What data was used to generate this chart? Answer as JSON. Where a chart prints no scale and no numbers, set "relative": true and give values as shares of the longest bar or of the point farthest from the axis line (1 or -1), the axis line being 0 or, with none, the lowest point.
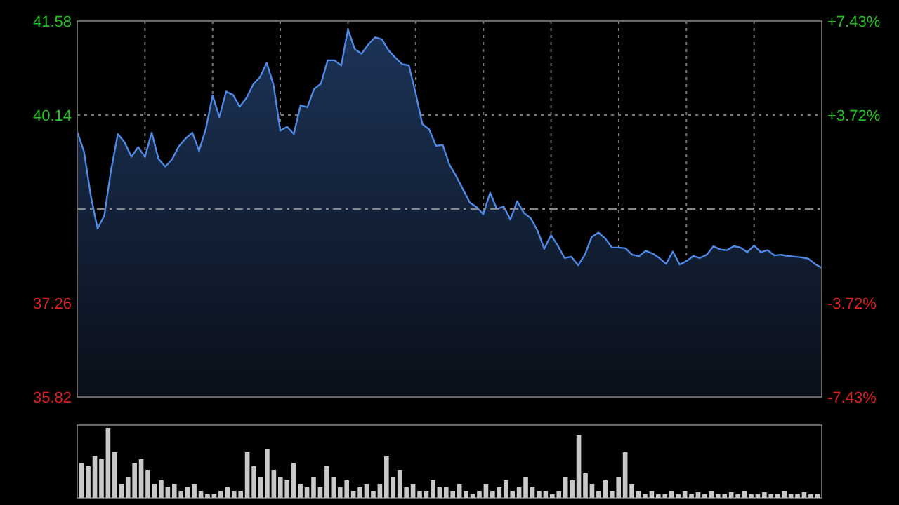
{
  "chart_data": [
    {
      "type": "area",
      "categories": [
        null,
        null,
        null,
        null,
        null,
        null,
        null,
        null,
        null,
        null,
        null,
        null,
        null,
        null,
        null,
        null,
        null,
        null,
        null,
        null,
        null,
        null,
        null,
        null,
        null,
        null,
        null,
        null,
        null,
        null,
        null,
        null,
        null,
        null,
        null,
        null,
        null,
        null,
        null,
        null,
        null,
        null,
        null,
        null,
        null,
        null,
        null,
        null,
        null,
        null,
        null,
        null,
        null,
        null,
        null,
        null,
        null,
        null,
        null,
        null,
        null,
        null,
        null,
        null,
        null,
        null,
        null,
        null,
        null,
        null,
        null,
        null,
        null,
        null,
        null,
        null,
        null,
        null,
        null,
        null,
        null,
        null,
        null,
        null,
        null,
        null,
        null,
        null,
        null,
        null,
        null,
        null,
        null,
        null,
        null,
        null,
        null,
        null,
        null,
        null,
        null,
        null,
        null,
        null,
        null,
        null,
        null,
        null,
        null,
        null,
        null
      ],
      "ylim": [
        35.82,
        41.58
      ],
      "yticks": [
        35.82,
        37.26,
        40.14,
        41.58
      ],
      "y2lim": [
        -7.43,
        7.43
      ],
      "y2ticks": [
        {
          "value": -7.43,
          "label": "-7.43%"
        },
        {
          "value": -3.72,
          "label": "-3.72%"
        },
        {
          "value": 3.72,
          "label": "+3.72%"
        },
        {
          "value": 7.43,
          "label": "+7.43%"
        }
      ],
      "ref_lines": [
        {
          "axis": "y",
          "value": 38.7,
          "line_style": "dashed",
          "color": "#888888"
        }
      ],
      "grid": true,
      "tick_labels": "y",
      "series": [
        {
          "color": "#4f8ae6",
          "values": [
            39.88,
            39.58,
            38.9,
            38.4,
            38.6,
            39.3,
            39.85,
            39.72,
            39.5,
            39.65,
            39.5,
            39.87,
            39.47,
            39.35,
            39.46,
            39.66,
            39.78,
            39.87,
            39.59,
            39.93,
            40.44,
            40.11,
            40.5,
            40.45,
            40.27,
            40.4,
            40.61,
            40.72,
            40.94,
            40.6,
            39.9,
            39.96,
            39.85,
            40.29,
            40.26,
            40.54,
            40.62,
            40.98,
            40.98,
            40.9,
            41.45,
            41.15,
            41.08,
            41.22,
            41.33,
            41.3,
            41.13,
            41.02,
            40.92,
            40.9,
            40.47,
            40,
            39.92,
            39.67,
            39.68,
            39.38,
            39.2,
            39,
            38.8,
            38.73,
            38.62,
            38.95,
            38.7,
            38.74,
            38.54,
            38.82,
            38.64,
            38.56,
            38.37,
            38.09,
            38.3,
            38.14,
            37.95,
            37.97,
            37.84,
            38,
            38.27,
            38.34,
            38.25,
            38.11,
            38.11,
            38.1,
            38,
            37.98,
            38.06,
            38.02,
            37.95,
            37.86,
            38.05,
            37.85,
            37.9,
            37.98,
            37.95,
            38,
            38.13,
            38.08,
            38.07,
            38.13,
            38.11,
            38.04,
            38.14,
            38.04,
            38.07,
            37.99,
            38,
            37.98,
            37.97,
            37.96,
            37.94,
            37.86,
            37.8
          ]
        }
      ]
    },
    {
      "type": "bar",
      "relative": true,
      "color": "#c8c8c8",
      "categories": [
        null,
        null,
        null,
        null,
        null,
        null,
        null,
        null,
        null,
        null,
        null,
        null,
        null,
        null,
        null,
        null,
        null,
        null,
        null,
        null,
        null,
        null,
        null,
        null,
        null,
        null,
        null,
        null,
        null,
        null,
        null,
        null,
        null,
        null,
        null,
        null,
        null,
        null,
        null,
        null,
        null,
        null,
        null,
        null,
        null,
        null,
        null,
        null,
        null,
        null,
        null,
        null,
        null,
        null,
        null,
        null,
        null,
        null,
        null,
        null,
        null,
        null,
        null,
        null,
        null,
        null,
        null,
        null,
        null,
        null,
        null,
        null,
        null,
        null,
        null,
        null,
        null,
        null,
        null,
        null,
        null,
        null,
        null,
        null,
        null,
        null,
        null,
        null,
        null,
        null,
        null,
        null,
        null,
        null,
        null,
        null,
        null,
        null,
        null,
        null,
        null,
        null,
        null,
        null,
        null,
        null,
        null,
        null,
        null,
        null,
        null,
        null
      ],
      "values": [
        0.5,
        0.45,
        0.6,
        0.55,
        1,
        0.65,
        0.2,
        0.3,
        0.5,
        0.55,
        0.4,
        0.2,
        0.25,
        0.15,
        0.2,
        0.1,
        0.15,
        0.2,
        0.1,
        0.05,
        0.05,
        0.1,
        0.15,
        0.1,
        0.1,
        0.65,
        0.45,
        0.3,
        0.7,
        0.4,
        0.3,
        0.25,
        0.5,
        0.2,
        0.15,
        0.3,
        0.15,
        0.45,
        0.3,
        0.15,
        0.25,
        0.1,
        0.15,
        0.2,
        0.1,
        0.2,
        0.6,
        0.3,
        0.4,
        0.15,
        0.2,
        0.1,
        0.1,
        0.25,
        0.15,
        0.15,
        0.1,
        0.2,
        0.1,
        0.05,
        0.1,
        0.2,
        0.1,
        0.15,
        0.25,
        0.1,
        0.15,
        0.3,
        0.15,
        0.1,
        0.1,
        0.05,
        0.1,
        0.3,
        0.25,
        0.9,
        0.35,
        0.2,
        0.1,
        0.25,
        0.1,
        0.3,
        0.65,
        0.2,
        0.1,
        0.05,
        0.1,
        0.05,
        0.05,
        0.1,
        0.05,
        0.1,
        0.05,
        0.08,
        0.05,
        0.1,
        0.05,
        0.05,
        0.08,
        0.05,
        0.1,
        0.05,
        0.05,
        0.08,
        0.05,
        0.05,
        0.1,
        0.05,
        0.05,
        0.08,
        0.05,
        0.05
      ]
    }
  ]
}
